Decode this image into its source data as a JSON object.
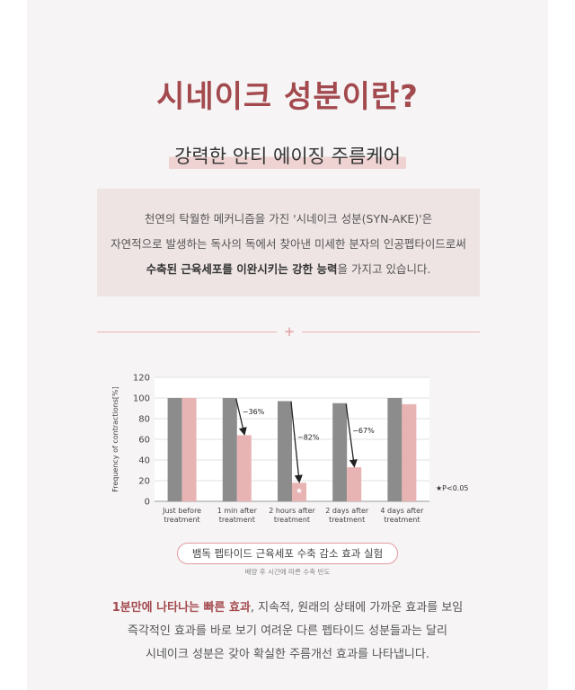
{
  "header": {
    "title": "시네이크 성분이란?",
    "subtitle": "강력한 안티 에이징 주름케어"
  },
  "intro": {
    "line1": "천연의 탁월한 메커니즘을 가진 '시네이크 성분(SYN-AKE)'은",
    "line2": "자연적으로 발생하는 독사의 독에서  찾아낸 미세한 분자의 인공펩타이드로써",
    "line3_bold": "수축된 근육세포를 이완시키는 강한 능력",
    "line3_rest": "을 가지고 있습니다."
  },
  "divider": {
    "symbol": "+"
  },
  "chart_data": {
    "type": "bar",
    "ylabel": "Frequency of contractions[%]",
    "ylim": [
      0,
      120
    ],
    "yticks": [
      0,
      20,
      40,
      60,
      80,
      100,
      120
    ],
    "categories": [
      [
        "Just before",
        "treatment"
      ],
      [
        "1 min after",
        "treatment"
      ],
      [
        "2 hours after",
        "treatment"
      ],
      [
        "2 days after",
        "treatment"
      ],
      [
        "4 days after",
        "treatment"
      ]
    ],
    "series": [
      {
        "values": [
          100,
          100,
          97,
          95,
          100
        ],
        "color": "#8c8c8c"
      },
      {
        "values": [
          100,
          64,
          18,
          33,
          94
        ],
        "color": "#e8b4b3"
      }
    ],
    "annotations": [
      {
        "category": 1,
        "text": "−36%"
      },
      {
        "category": 2,
        "text": "−82%"
      },
      {
        "category": 3,
        "text": "−67%"
      }
    ],
    "star_category": 2,
    "star_symbol": "★",
    "significance": "★P<0.05",
    "grid": true,
    "title": "뱀독 펩타이드 근육세포 수축 감소 효과 실험",
    "caption": "배양 후 시간에 따른 수축 빈도"
  },
  "outro": {
    "line1_accent": "1분만에 나타나는 빠른 효과",
    "line1_rest": ", 지속적, 원래의 상태에 가까운 효과를 보임",
    "line2": "즉각적인 효과를 바로 보기 여려운 다른 펩타이드 성분들과는 달리",
    "line3": "시네이크 성분은 갖아 확실한 주름개선 효과를 나타냅니다."
  }
}
